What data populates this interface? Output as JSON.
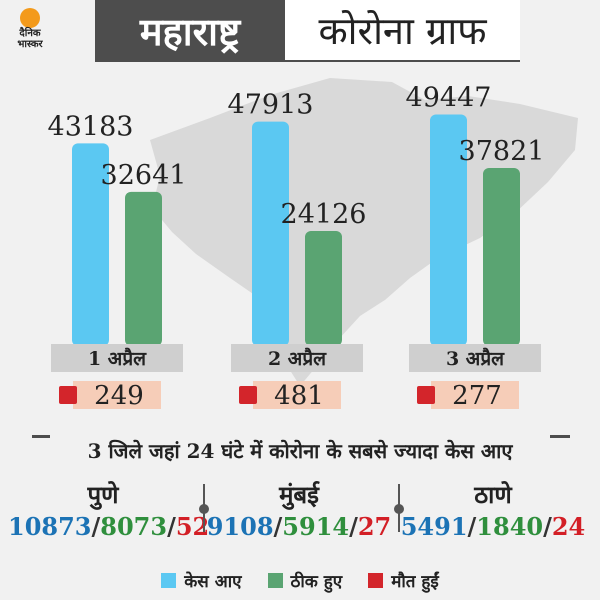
{
  "header": {
    "logo_line1": "दैनिक",
    "logo_line2": "भास्कर",
    "title_left": "महाराष्ट्र",
    "title_right": "कोरोना ग्राफ"
  },
  "colors": {
    "cases": "#5bc8f2",
    "recovered": "#5aa472",
    "deaths": "#d3252b"
  },
  "chart_data": {
    "type": "bar",
    "categories": [
      "1 अप्रैल",
      "2 अप्रैल",
      "3 अप्रैल"
    ],
    "series": [
      {
        "name": "केस आए",
        "values": [
          43183,
          47913,
          49447
        ]
      },
      {
        "name": "ठीक हुए",
        "values": [
          32641,
          24126,
          37821
        ]
      }
    ],
    "deaths": [
      249,
      481,
      277
    ],
    "ylim": [
      0,
      50000
    ]
  },
  "districts": {
    "title": "3 जिले जहां 24 घंटे में कोरोना के सबसे ज्यादा केस आए",
    "items": [
      {
        "name": "पुणे",
        "cases": "10873",
        "recovered": "8073",
        "deaths": "52"
      },
      {
        "name": "मुंबई",
        "cases": "9108",
        "recovered": "5914",
        "deaths": "27"
      },
      {
        "name": "ठाणे",
        "cases": "5491",
        "recovered": "1840",
        "deaths": "24"
      }
    ],
    "separator": "/"
  },
  "legend": [
    {
      "label": "केस आए",
      "icon": "cases-swatch"
    },
    {
      "label": "ठीक हुए",
      "icon": "recovered-swatch"
    },
    {
      "label": "मौत हुईं",
      "icon": "deaths-swatch"
    }
  ]
}
